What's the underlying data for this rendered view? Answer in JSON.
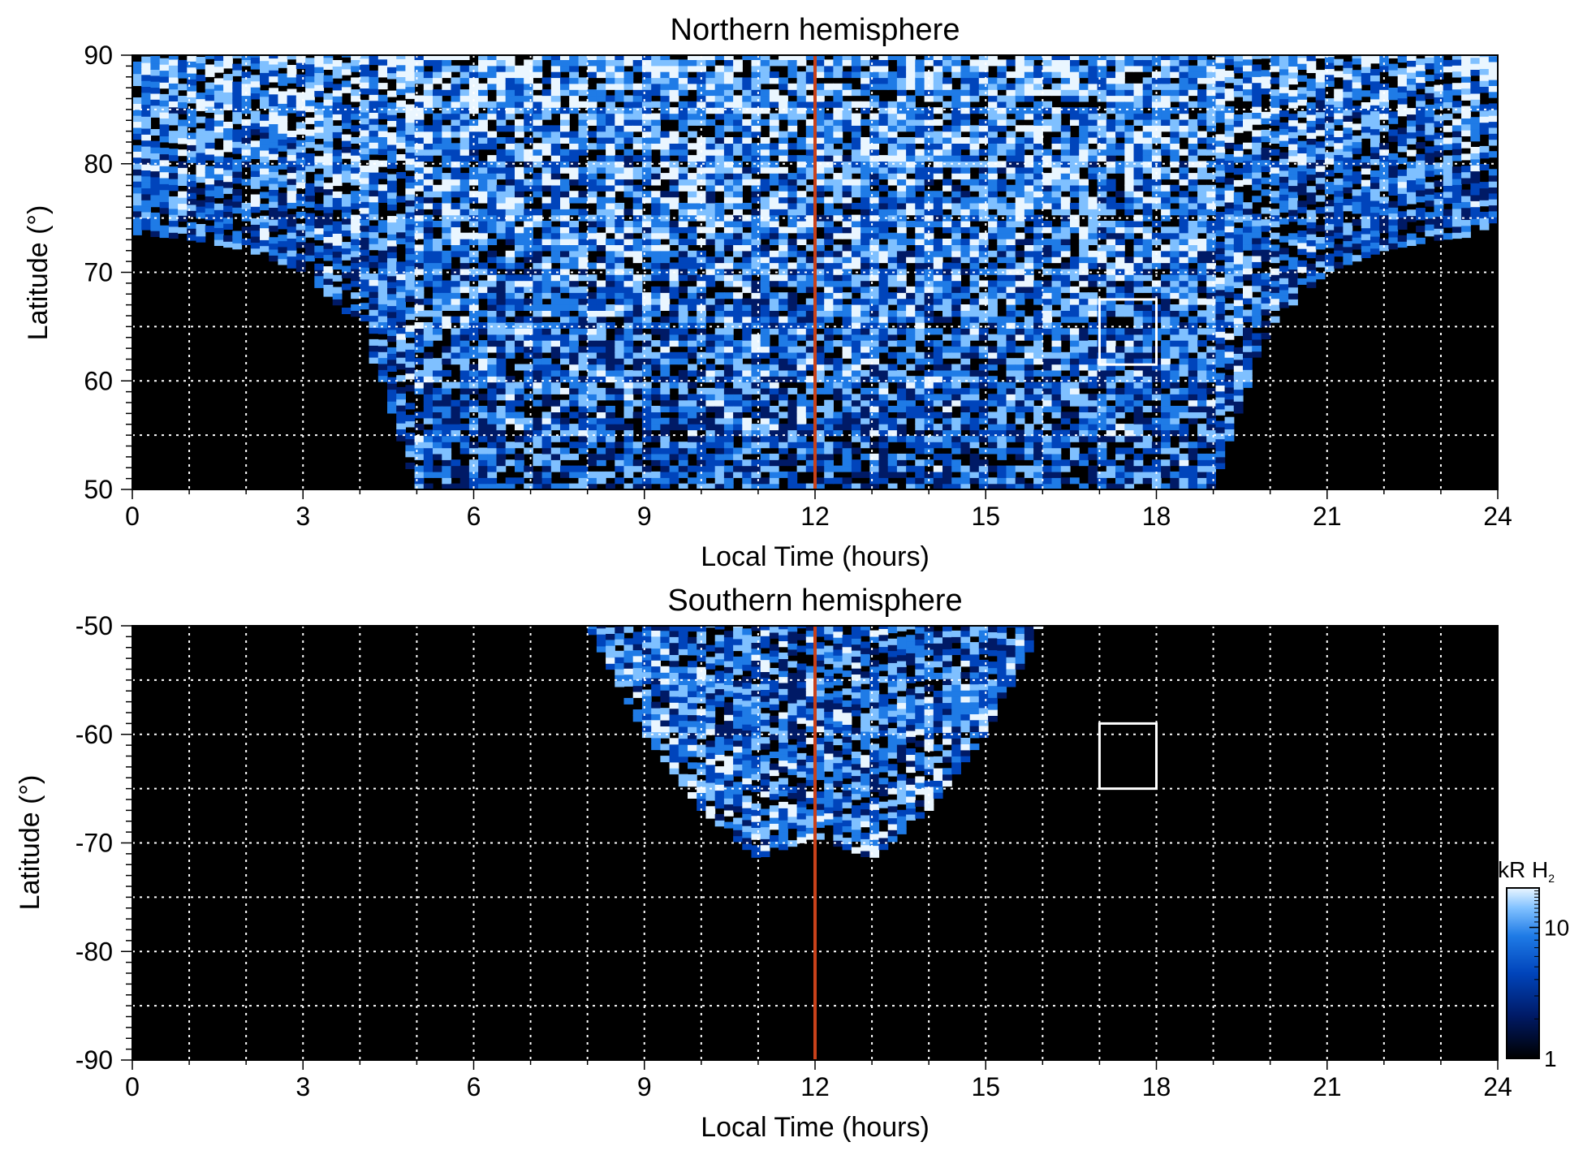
{
  "chart_data": [
    {
      "type": "heatmap",
      "title": "Northern hemisphere",
      "xlabel": "Local Time (hours)",
      "ylabel": "Latitude (°)",
      "xlim": [
        0,
        24
      ],
      "ylim": [
        50,
        90
      ],
      "x_ticks": [
        "0",
        "3",
        "6",
        "9",
        "12",
        "15",
        "18",
        "21",
        "24"
      ],
      "y_ticks": [
        "50",
        "60",
        "70",
        "80",
        "90"
      ],
      "grid": true,
      "grid_x_step_hours": 1,
      "grid_y_step_deg": 5,
      "colormap": [
        "#000000",
        "#001a66",
        "#0044bb",
        "#1f7be6",
        "#7fc0ff",
        "#eaf6ff"
      ],
      "reference_line": {
        "x": 12,
        "color": "#c8411a"
      },
      "highlight_box": {
        "x": [
          17,
          18
        ],
        "y": [
          61.5,
          67.5
        ],
        "color": "#ffffff"
      },
      "coverage_boundary_lat": [
        [
          0,
          73.5
        ],
        [
          1,
          73
        ],
        [
          2,
          72
        ],
        [
          3,
          70
        ],
        [
          4,
          65
        ],
        [
          4.5,
          58
        ],
        [
          5,
          50
        ],
        [
          19,
          50
        ],
        [
          19.5,
          58
        ],
        [
          20,
          65
        ],
        [
          21,
          70
        ],
        [
          22,
          72
        ],
        [
          23,
          73
        ],
        [
          24,
          73.5
        ]
      ]
    },
    {
      "type": "heatmap",
      "title": "Southern hemisphere",
      "xlabel": "Local Time (hours)",
      "ylabel": "Latitude (°)",
      "xlim": [
        0,
        24
      ],
      "ylim": [
        -90,
        -50
      ],
      "x_ticks": [
        "0",
        "3",
        "6",
        "9",
        "12",
        "15",
        "18",
        "21",
        "24"
      ],
      "y_ticks": [
        "-50",
        "-60",
        "-70",
        "-80",
        "-90"
      ],
      "grid": true,
      "grid_x_step_hours": 1,
      "grid_y_step_deg": 5,
      "colormap": [
        "#000000",
        "#001a66",
        "#0044bb",
        "#1f7be6",
        "#7fc0ff",
        "#eaf6ff"
      ],
      "reference_line": {
        "x": 12,
        "color": "#c8411a"
      },
      "highlight_box": {
        "x": [
          17,
          18
        ],
        "y": [
          -65,
          -59
        ],
        "color": "#ffffff"
      },
      "coverage_boundary_lat": [
        [
          8,
          -50
        ],
        [
          9,
          -60
        ],
        [
          10,
          -67
        ],
        [
          11,
          -71.5
        ],
        [
          12,
          -69.5
        ],
        [
          13,
          -71.5
        ],
        [
          14,
          -67
        ],
        [
          15,
          -60
        ],
        [
          16,
          -50
        ]
      ],
      "colorbar": {
        "label_main": "kR H",
        "label_sub": "2",
        "ticks": [
          "1",
          "10"
        ],
        "tick_values": [
          1,
          10
        ],
        "range": [
          1,
          20
        ],
        "scale": "log"
      }
    }
  ]
}
